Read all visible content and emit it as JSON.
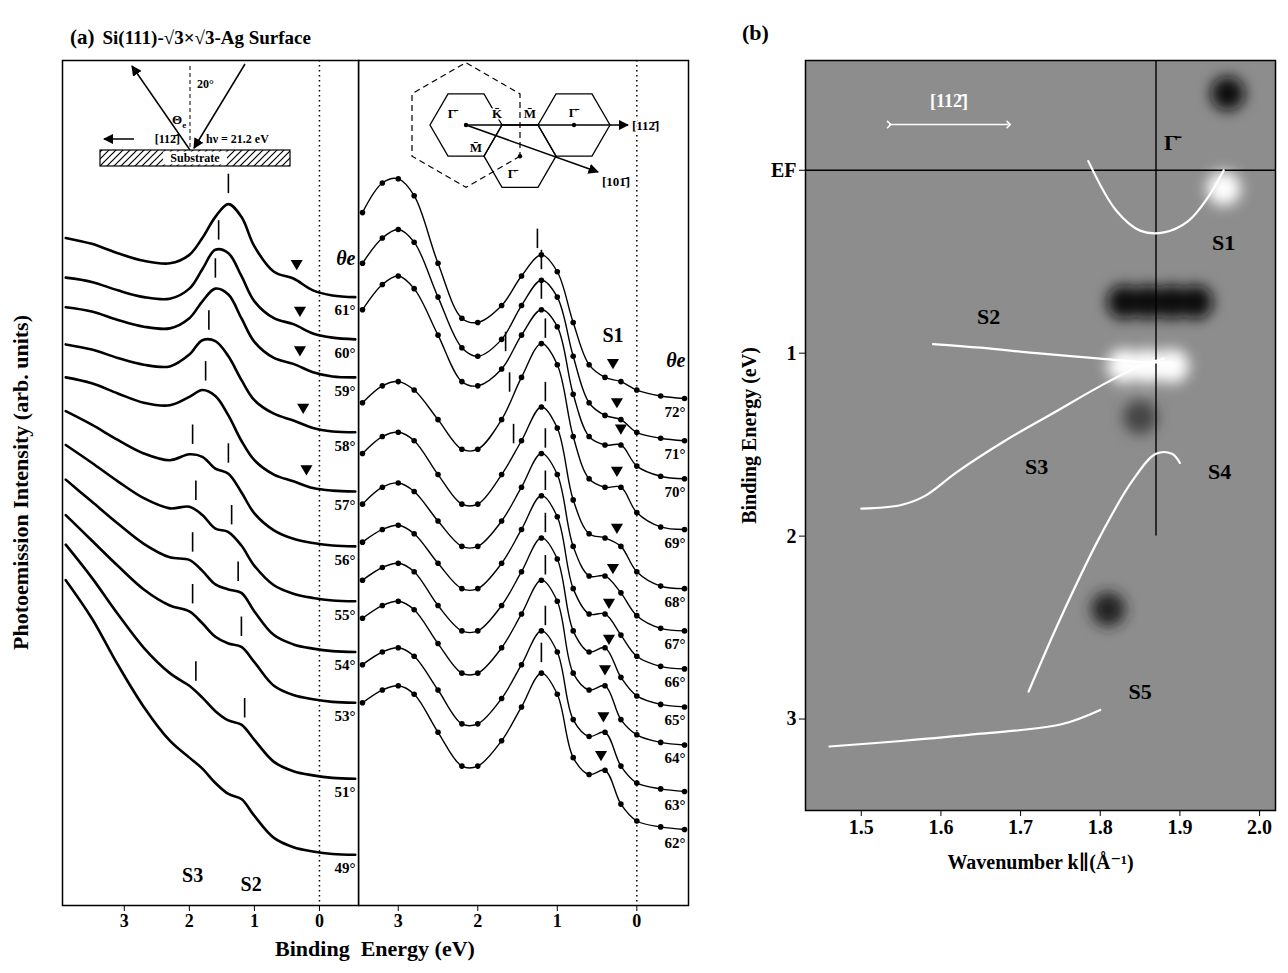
{
  "chart_data": [
    {
      "type": "line",
      "panel": "(a)",
      "title": "Si(111)-√3×√3-Ag Surface",
      "ylabel": "Photoemission Intensity (arb. units)",
      "xlabel": "Binding  Energy (eV)",
      "xlim": [
        3.95,
        -0.6
      ],
      "xticks": [
        3,
        2,
        1,
        0
      ],
      "ylim": [
        0,
        100
      ],
      "tick_labels": "x",
      "vlines": [
        0
      ],
      "series_label": "θe",
      "x": [
        3.9,
        3.5,
        3.1,
        2.7,
        2.3,
        2.0,
        1.8,
        1.6,
        1.4,
        1.2,
        1.0,
        0.7,
        0.4,
        0.1,
        -0.2,
        -0.55
      ],
      "series": [
        {
          "name": "61°",
          "offset": 72,
          "values": [
            7,
            6.3,
            5.2,
            4.3,
            4.0,
            5.0,
            7.0,
            9.5,
            11,
            9.5,
            6.0,
            3.0,
            2.2,
            0.8,
            0.2,
            0
          ],
          "peaks": [
            1.4
          ],
          "s1": 0.35
        },
        {
          "name": "60°",
          "offset": 67,
          "values": [
            7.3,
            6.8,
            5.8,
            5.0,
            4.8,
            6.0,
            8.3,
            10.6,
            10.2,
            7.5,
            4.5,
            2.5,
            1.8,
            0.7,
            0.2,
            0
          ],
          "peaks": [
            1.55
          ],
          "s1": 0.3
        },
        {
          "name": "59°",
          "offset": 62.5,
          "values": [
            8.3,
            7.8,
            6.8,
            6.0,
            5.8,
            7.0,
            9.0,
            10.5,
            9.8,
            7.0,
            4.2,
            2.3,
            1.6,
            0.6,
            0.1,
            0
          ],
          "peaks": [
            1.6
          ],
          "s1": 0.3
        },
        {
          "name": "58°",
          "offset": 56,
          "values": [
            10.4,
            9.8,
            8.8,
            8.0,
            7.8,
            9.2,
            10.9,
            10.8,
            9.0,
            6.2,
            3.8,
            2.2,
            1.4,
            0.5,
            0.1,
            0
          ],
          "peaks": [
            1.7
          ],
          "s1": 0.25
        },
        {
          "name": "57°",
          "offset": 49,
          "values": [
            13.5,
            12.8,
            11.6,
            10.5,
            10.2,
            11.2,
            12,
            11.3,
            9.0,
            6.0,
            3.7,
            2.0,
            1.2,
            0.4,
            0.1,
            0
          ],
          "peaks": [
            1.75
          ],
          "s1": 0.2
        },
        {
          "name": "56°",
          "offset": 42.5,
          "values": [
            16,
            14.4,
            12.6,
            11.0,
            10.2,
            10.9,
            10.6,
            9.2,
            8.6,
            6.4,
            3.9,
            1.9,
            0.9,
            0.4,
            0.1,
            0
          ],
          "peaks": [
            1.95,
            1.4
          ],
          "s1": null
        },
        {
          "name": "55°",
          "offset": 36,
          "values": [
            18.5,
            16.4,
            14.2,
            12.2,
            11.0,
            11.2,
            10.2,
            8.6,
            8.2,
            6.6,
            4.2,
            1.9,
            0.9,
            0.4,
            0.1,
            0
          ],
          "peaks": [
            1.9,
            1.35
          ],
          "s1": null
        },
        {
          "name": "54°",
          "offset": 30,
          "values": [
            20.4,
            17.8,
            15.2,
            12.8,
            11.2,
            10.9,
            9.6,
            8.0,
            7.4,
            7.0,
            4.8,
            2.0,
            0.9,
            0.4,
            0.1,
            0
          ],
          "peaks": [
            1.95,
            1.25
          ],
          "s1": null
        },
        {
          "name": "53°",
          "offset": 24,
          "values": [
            22.2,
            19.2,
            16.2,
            13.4,
            11.5,
            10.8,
            9.4,
            7.8,
            7.0,
            6.6,
            4.8,
            2.0,
            0.9,
            0.4,
            0.1,
            0
          ],
          "peaks": [
            1.95,
            1.2
          ],
          "s1": null
        },
        {
          "name": "51°",
          "offset": 15,
          "values": [
            27.7,
            23.8,
            19.5,
            15.5,
            12.5,
            11.0,
            9.6,
            8.0,
            6.9,
            6.4,
            4.6,
            2.0,
            0.9,
            0.4,
            0.1,
            0
          ],
          "peaks": [
            1.9,
            1.15
          ],
          "s1": null
        },
        {
          "name": "49°",
          "offset": 6,
          "values": [
            32.5,
            28,
            22.5,
            17.5,
            13.5,
            11.5,
            10.2,
            8.5,
            7.2,
            6.6,
            4.6,
            2.0,
            0.9,
            0.4,
            0.1,
            0
          ],
          "peaks": [],
          "s1": null
        }
      ],
      "annotations": [
        {
          "text": "S3",
          "x": 1.95,
          "y": 3.5
        },
        {
          "text": "S2",
          "x": 1.05,
          "y": 2.5
        }
      ]
    },
    {
      "type": "line",
      "marker": "circle",
      "xlim": [
        3.5,
        -0.65
      ],
      "xticks": [
        3,
        2,
        1,
        0
      ],
      "ylim": [
        0,
        100
      ],
      "tick_labels": "x",
      "vlines": [
        0
      ],
      "series_label": "θe",
      "x": [
        3.45,
        3.2,
        3.0,
        2.8,
        2.5,
        2.2,
        2.0,
        1.7,
        1.45,
        1.2,
        1.0,
        0.8,
        0.6,
        0.4,
        0.2,
        0.0,
        -0.3,
        -0.6
      ],
      "series": [
        {
          "name": "72°",
          "offset": 60,
          "values": [
            22,
            25.5,
            26,
            24,
            16,
            9.5,
            9,
            11,
            14.5,
            17,
            15,
            9,
            4,
            2.5,
            2,
            1,
            0.3,
            0
          ],
          "peaks": [
            1.25
          ],
          "s1": 0.3
        },
        {
          "name": "71°",
          "offset": 55,
          "values": [
            21,
            24,
            25,
            23.5,
            17,
            11,
            10,
            12,
            16,
            19,
            17,
            10,
            4.5,
            3,
            2.5,
            1,
            0.3,
            0
          ],
          "peaks": [
            1.2
          ],
          "s1": 0.25
        },
        {
          "name": "70°",
          "offset": 50.5,
          "values": [
            20,
            23,
            24,
            22.5,
            17,
            11.5,
            11,
            13,
            17,
            20,
            18,
            10,
            5,
            4,
            4,
            1.5,
            0.3,
            0
          ],
          "peaks": [
            1.65,
            1.2
          ],
          "s1": 0.2
        },
        {
          "name": "69°",
          "offset": 44.5,
          "values": [
            15,
            17,
            17.5,
            16.5,
            13,
            9.5,
            9.5,
            13,
            18,
            22,
            19.5,
            11,
            6,
            5,
            5,
            2,
            0.3,
            0
          ],
          "peaks": [
            1.6,
            1.15
          ],
          "s1": 0.25
        },
        {
          "name": "68°",
          "offset": 37.5,
          "values": [
            16,
            18,
            18.5,
            17.5,
            13.5,
            10,
            10,
            13.5,
            17.5,
            21.5,
            19,
            10.5,
            6.5,
            6,
            5,
            2,
            0.3,
            0
          ],
          "peaks": [
            1.55,
            1.15
          ],
          "s1": 0.25
        },
        {
          "name": "67°",
          "offset": 32.5,
          "values": [
            15,
            17,
            17.5,
            16.5,
            13,
            10,
            10,
            13,
            17,
            21,
            18.5,
            10,
            6.5,
            6.5,
            4.5,
            1.8,
            0.3,
            0
          ],
          "peaks": [
            1.15
          ],
          "s1": 0.3
        },
        {
          "name": "66°",
          "offset": 28,
          "values": [
            15,
            16.5,
            17,
            16,
            12.5,
            9.5,
            9.5,
            12.5,
            16.5,
            20.5,
            18,
            9.5,
            6.5,
            6.5,
            4,
            1.5,
            0.3,
            0
          ],
          "peaks": [
            1.15
          ],
          "s1": 0.35
        },
        {
          "name": "65°",
          "offset": 23.5,
          "values": [
            15,
            16.5,
            17,
            16,
            12,
            9,
            9,
            12,
            16,
            20,
            17.5,
            9,
            6.5,
            7,
            3.5,
            1.3,
            0.3,
            0
          ],
          "peaks": [
            1.15
          ],
          "s1": 0.35
        },
        {
          "name": "64°",
          "offset": 19,
          "values": [
            15,
            16.5,
            17,
            16,
            12,
            8.5,
            8.5,
            11.5,
            15.5,
            19.5,
            17,
            8.5,
            6.5,
            7,
            3,
            1.2,
            0.3,
            0
          ],
          "peaks": [
            1.15
          ],
          "s1": 0.4
        },
        {
          "name": "63°",
          "offset": 13.5,
          "values": [
            15,
            16.5,
            17,
            16,
            12,
            8,
            8,
            11,
            15,
            19,
            16.5,
            8.5,
            6.5,
            7,
            3,
            1,
            0.3,
            0
          ],
          "peaks": [
            1.15
          ],
          "s1": 0.42
        },
        {
          "name": "62°",
          "offset": 9,
          "values": [
            15,
            16.5,
            17,
            16,
            11.5,
            7.5,
            7.5,
            10.5,
            14.5,
            18.5,
            16,
            8.5,
            6.5,
            7,
            3,
            1,
            0.3,
            0
          ],
          "peaks": [
            1.2
          ],
          "s1": 0.45
        }
      ],
      "annotations": [
        {
          "text": "S1",
          "x": 0.3,
          "y": 67.5
        }
      ]
    },
    {
      "type": "band_map",
      "panel": "(b)",
      "xlabel": "Wavenumber k∥(Å⁻¹)",
      "ylabel": "Binding Energy (eV)",
      "xlim": [
        1.43,
        2.02
      ],
      "xticks": [
        1.5,
        1.6,
        1.7,
        1.8,
        1.9,
        {
          "value": 2,
          "label": "2.0"
        }
      ],
      "ylim": [
        3.5,
        -0.6
      ],
      "yticks": [
        {
          "value": 0,
          "label": "EF"
        },
        1,
        2,
        3
      ],
      "hlines": [
        0
      ],
      "gamma": {
        "x": 1.87,
        "label": "Γ̄",
        "y_end": 2.0,
        "label_y": -0.15
      },
      "bands": [
        {
          "name": "S1",
          "color": "#ffffff",
          "x": [
            1.785,
            1.82,
            1.85,
            1.88,
            1.91,
            1.935,
            1.955
          ],
          "y": [
            -0.05,
            0.22,
            0.33,
            0.34,
            0.28,
            0.15,
            0.0
          ],
          "label_x": 1.955,
          "label_y": 0.4
        },
        {
          "name": "S2",
          "color": "#ffffff",
          "x": [
            1.59,
            1.65,
            1.72,
            1.8,
            1.86,
            1.89
          ],
          "y": [
            0.95,
            0.97,
            1.0,
            1.03,
            1.05,
            1.05
          ],
          "label_x": 1.66,
          "label_y": 0.8
        },
        {
          "name": "S3",
          "color": "#ffffff",
          "x": [
            1.5,
            1.55,
            1.58,
            1.62,
            1.68,
            1.74,
            1.8,
            1.85,
            1.88
          ],
          "y": [
            1.85,
            1.83,
            1.78,
            1.65,
            1.48,
            1.33,
            1.18,
            1.07,
            1.03
          ],
          "label_x": 1.72,
          "label_y": 1.62
        },
        {
          "name": "S4",
          "color": "#ffffff",
          "x": [
            1.71,
            1.75,
            1.8,
            1.84,
            1.87,
            1.89,
            1.9
          ],
          "y": [
            2.85,
            2.45,
            2.0,
            1.7,
            1.55,
            1.55,
            1.6
          ],
          "label_x": 1.95,
          "label_y": 1.65
        },
        {
          "name": "S5",
          "color": "#ffffff",
          "x": [
            1.46,
            1.55,
            1.65,
            1.75,
            1.8
          ],
          "y": [
            3.15,
            3.12,
            3.08,
            3.03,
            2.95
          ],
          "label_x": 1.85,
          "label_y": 2.85
        }
      ],
      "spots": {
        "x": [
          1.96,
          1.955,
          1.83,
          1.86,
          1.89,
          1.92,
          1.83,
          1.86,
          1.89,
          1.81,
          1.85
        ],
        "y": [
          -0.42,
          0.1,
          0.72,
          0.72,
          0.72,
          0.72,
          1.07,
          1.07,
          1.07,
          2.4,
          1.35
        ],
        "colors": [
          "#111111",
          "#ffffff",
          "#111111",
          "#111111",
          "#111111",
          "#111111",
          "#ffffff",
          "#ffffff",
          "#ffffff",
          "#222222",
          "#444444"
        ]
      },
      "annotations": [
        {
          "text": "[112̄]",
          "x": 1.61,
          "y": -0.38,
          "color": "#ffffff",
          "marker": "double_arrow"
        }
      ]
    }
  ],
  "insets": {
    "geometry": {
      "angle_label": "Θe",
      "incidence": "20°",
      "direction": "[112̄]",
      "photon": "hν = 21.2 eV",
      "substrate": "Substrate"
    },
    "brillouin_zone": {
      "points": [
        "Γ̄",
        "K̄",
        "M̄",
        "Γ̄",
        "M̄",
        "Γ̄"
      ],
      "directions": [
        "[112̄]",
        "[101̄]"
      ]
    }
  }
}
